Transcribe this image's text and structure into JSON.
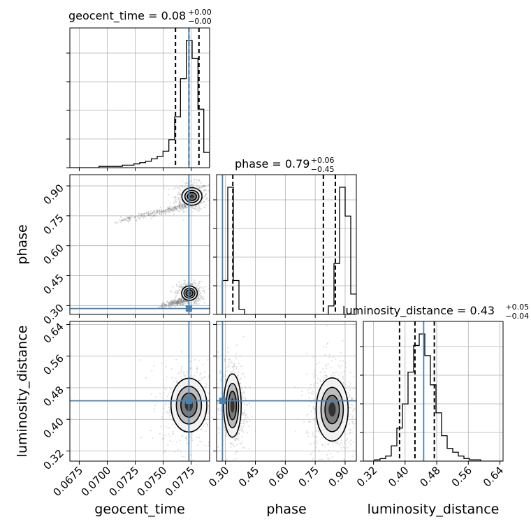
{
  "chart_data": {
    "type": "corner",
    "parameters": [
      "geocent_time",
      "phase",
      "luminosity_distance"
    ],
    "titles": [
      {
        "param": "geocent_time",
        "text": "geocent_time = 0.08",
        "sup": "+0.00",
        "sub": "−0.00"
      },
      {
        "param": "phase",
        "text": "phase = 0.79",
        "sup": "+0.06",
        "sub": "−0.45"
      },
      {
        "param": "luminosity_distance",
        "text": "luminosity_distance = 0.43",
        "sup": "+0.05",
        "sub": "−0.04"
      }
    ],
    "ranges": {
      "geocent_time": [
        0.06666,
        0.07915
      ],
      "phase": [
        0.2556,
        0.9562
      ],
      "luminosity_distance": [
        0.2943,
        0.6479
      ]
    },
    "ticks": {
      "geocent_time": [
        "0.0675",
        "0.0700",
        "0.0725",
        "0.0750",
        "0.0775"
      ],
      "phase": [
        "0.30",
        "0.45",
        "0.60",
        "0.75",
        "0.90"
      ],
      "luminosity_distance": [
        "0.32",
        "0.40",
        "0.48",
        "0.56",
        "0.64"
      ]
    },
    "truths": {
      "geocent_time": 0.0773,
      "phase": 0.285,
      "luminosity_distance": 0.447
    },
    "quantiles": {
      "geocent_time": [
        0.0761,
        0.0773,
        0.0782
      ],
      "phase": [
        0.337,
        0.791,
        0.851
      ],
      "luminosity_distance": [
        0.386,
        0.425,
        0.474
      ]
    },
    "histograms": {
      "geocent_time": [
        0,
        0,
        0,
        0,
        0,
        1,
        1,
        1,
        1,
        2,
        2,
        3,
        4,
        5,
        7,
        9,
        13,
        22,
        40,
        70,
        100,
        86,
        46,
        12
      ],
      "phase": [
        0,
        20,
        75,
        20,
        3,
        0,
        0,
        0,
        0,
        0,
        0,
        0,
        0,
        0,
        0,
        0,
        0,
        0,
        0,
        0,
        5,
        30,
        75,
        58,
        12
      ],
      "luminosity_distance": [
        0,
        0,
        1,
        2,
        4,
        12,
        26,
        45,
        70,
        91,
        100,
        83,
        60,
        38,
        20,
        10,
        7,
        4,
        2,
        1,
        1,
        0,
        0,
        0,
        0
      ]
    },
    "pairs": [
      {
        "x": "geocent_time",
        "y": "phase",
        "modes": [
          {
            "cx": 0.07757,
            "cy": 0.847,
            "sx": 0.00045,
            "sy": 0.022
          },
          {
            "cx": 0.07735,
            "cy": 0.362,
            "sx": 0.00035,
            "sy": 0.018
          }
        ],
        "tails": [
          {
            "x0": 0.0705,
            "y0": 0.72,
            "x1": 0.0772,
            "y1": 0.8
          },
          {
            "x0": 0.0745,
            "y0": 0.29,
            "x1": 0.0772,
            "y1": 0.33
          }
        ]
      },
      {
        "x": "geocent_time",
        "y": "luminosity_distance",
        "modes": [
          {
            "cx": 0.0773,
            "cy": 0.436,
            "sx": 0.0008,
            "sy": 0.034
          }
        ],
        "tails": []
      },
      {
        "x": "phase",
        "y": "luminosity_distance",
        "modes": [
          {
            "cx": 0.335,
            "cy": 0.435,
            "sx": 0.022,
            "sy": 0.04
          },
          {
            "cx": 0.835,
            "cy": 0.425,
            "sx": 0.04,
            "sy": 0.04
          }
        ],
        "tails": []
      }
    ],
    "grid": true
  }
}
